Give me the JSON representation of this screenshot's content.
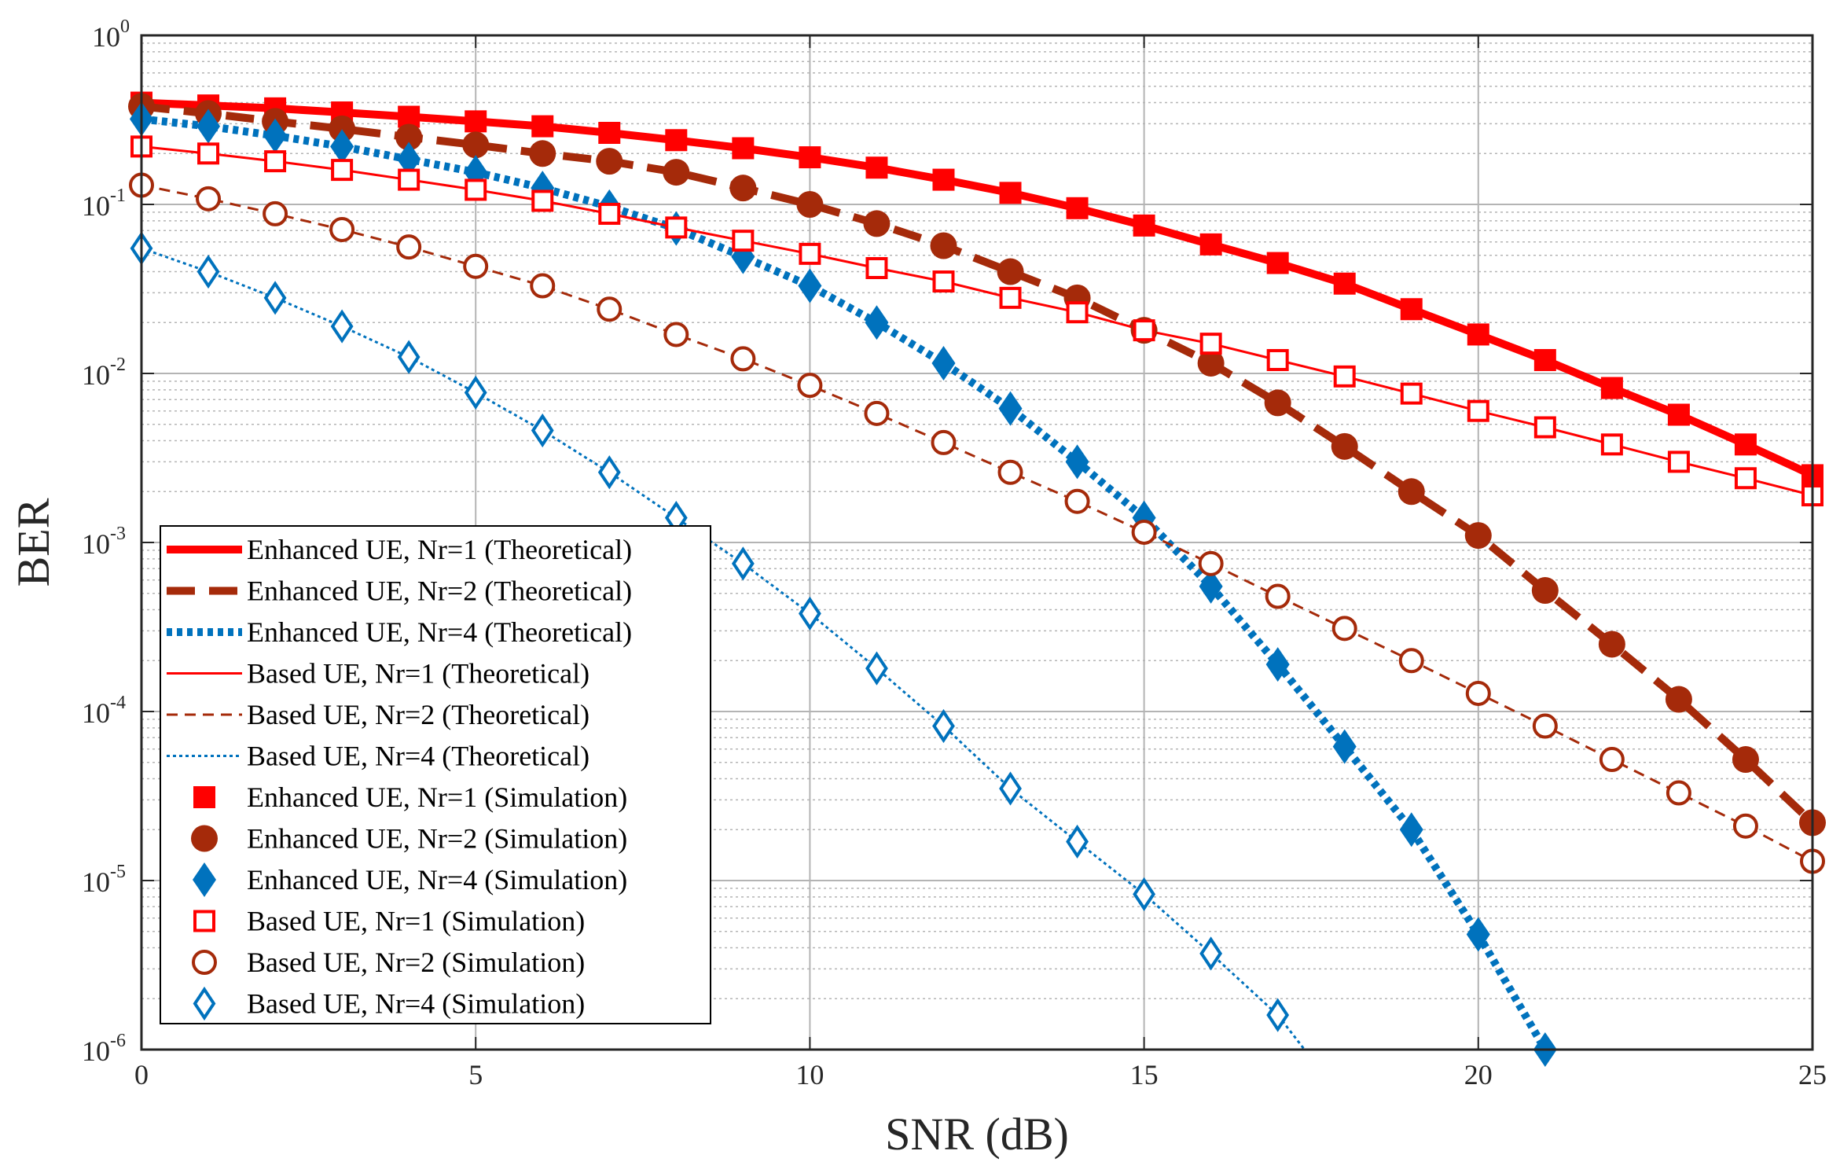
{
  "chart_data": {
    "type": "line",
    "title": "",
    "xlabel": "SNR (dB)",
    "ylabel": "BER",
    "yscale": "log",
    "xlim": [
      0,
      25
    ],
    "ylim": [
      1e-06,
      1
    ],
    "grid": true,
    "minor_grid": true,
    "legend_position": "lower-left",
    "x_ticks": [
      0,
      5,
      10,
      15,
      20,
      25
    ],
    "y_ticks": [
      {
        "base": "10",
        "exp": "0",
        "value": 1
      },
      {
        "base": "10",
        "exp": "-1",
        "value": 0.1
      },
      {
        "base": "10",
        "exp": "-2",
        "value": 0.01
      },
      {
        "base": "10",
        "exp": "-3",
        "value": 0.001
      },
      {
        "base": "10",
        "exp": "-4",
        "value": 0.0001
      },
      {
        "base": "10",
        "exp": "-5",
        "value": 1e-05
      },
      {
        "base": "10",
        "exp": "-6",
        "value": 1e-06
      }
    ],
    "colors": {
      "red": "#ff0000",
      "brown": "#a52a0a",
      "blue": "#0072bd",
      "grid": "#b4b4b4",
      "axis": "#262626"
    },
    "series": [
      {
        "name": "Enhanced UE, Nr=1 (Theoretical)",
        "kind": "line",
        "color": "red",
        "style": "solid",
        "width": "thick",
        "x": [
          0,
          1,
          2,
          3,
          4,
          5,
          6,
          7,
          8,
          9,
          10,
          11,
          12,
          13,
          14,
          15,
          16,
          17,
          18,
          19,
          20,
          21,
          22,
          23,
          24,
          25
        ],
        "y": [
          0.4,
          0.385,
          0.37,
          0.35,
          0.33,
          0.31,
          0.29,
          0.265,
          0.24,
          0.215,
          0.19,
          0.165,
          0.14,
          0.117,
          0.095,
          0.075,
          0.058,
          0.045,
          0.034,
          0.024,
          0.017,
          0.012,
          0.0082,
          0.0057,
          0.0038,
          0.0025
        ]
      },
      {
        "name": "Enhanced UE, Nr=2 (Theoretical)",
        "kind": "line",
        "color": "brown",
        "style": "dashed",
        "width": "thick",
        "x": [
          0,
          1,
          2,
          3,
          4,
          5,
          6,
          7,
          8,
          9,
          10,
          11,
          12,
          13,
          14,
          15,
          16,
          17,
          18,
          19,
          20,
          21,
          22,
          23,
          24,
          25
        ],
        "y": [
          0.38,
          0.345,
          0.31,
          0.28,
          0.25,
          0.225,
          0.2,
          0.18,
          0.155,
          0.125,
          0.1,
          0.077,
          0.057,
          0.04,
          0.028,
          0.018,
          0.0115,
          0.0067,
          0.0037,
          0.002,
          0.0011,
          0.00052,
          0.00025,
          0.000118,
          5.2e-05,
          2.2e-05
        ]
      },
      {
        "name": "Enhanced UE, Nr=4 (Theoretical)",
        "kind": "line",
        "color": "blue",
        "style": "dotted",
        "width": "thick",
        "x": [
          0,
          1,
          2,
          3,
          4,
          5,
          6,
          7,
          8,
          9,
          10,
          11,
          12,
          13,
          14,
          15,
          16,
          17,
          18,
          19,
          20,
          21
        ],
        "y": [
          0.32,
          0.29,
          0.255,
          0.22,
          0.185,
          0.155,
          0.125,
          0.097,
          0.072,
          0.049,
          0.033,
          0.02,
          0.0115,
          0.0062,
          0.003,
          0.0014,
          0.00055,
          0.00019,
          6.2e-05,
          2e-05,
          4.8e-06,
          1e-06
        ]
      },
      {
        "name": "Based UE, Nr=1 (Theoretical)",
        "kind": "line",
        "color": "red",
        "style": "solid",
        "width": "thin",
        "x": [
          0,
          1,
          2,
          3,
          4,
          5,
          6,
          7,
          8,
          9,
          10,
          11,
          12,
          13,
          14,
          15,
          16,
          17,
          18,
          19,
          20,
          21,
          22,
          23,
          24,
          25
        ],
        "y": [
          0.22,
          0.2,
          0.18,
          0.16,
          0.14,
          0.122,
          0.105,
          0.088,
          0.073,
          0.061,
          0.051,
          0.042,
          0.035,
          0.028,
          0.023,
          0.018,
          0.015,
          0.012,
          0.0096,
          0.0076,
          0.006,
          0.0048,
          0.0038,
          0.003,
          0.0024,
          0.0019
        ]
      },
      {
        "name": "Based UE, Nr=2 (Theoretical)",
        "kind": "line",
        "color": "brown",
        "style": "dashed",
        "width": "thin",
        "x": [
          0,
          1,
          2,
          3,
          4,
          5,
          6,
          7,
          8,
          9,
          10,
          11,
          12,
          13,
          14,
          15,
          16,
          17,
          18,
          19,
          20,
          21,
          22,
          23,
          24,
          25
        ],
        "y": [
          0.13,
          0.108,
          0.088,
          0.071,
          0.056,
          0.043,
          0.033,
          0.024,
          0.017,
          0.0122,
          0.0085,
          0.0058,
          0.0039,
          0.0026,
          0.00175,
          0.00115,
          0.00075,
          0.00048,
          0.00031,
          0.0002,
          0.000128,
          8.2e-05,
          5.2e-05,
          3.3e-05,
          2.1e-05,
          1.3e-05
        ]
      },
      {
        "name": "Based UE, Nr=4 (Theoretical)",
        "kind": "line",
        "color": "blue",
        "style": "dotted",
        "width": "thin",
        "x": [
          0,
          1,
          2,
          3,
          4,
          5,
          6,
          7,
          8,
          9,
          10,
          11,
          12,
          13,
          14,
          15,
          16,
          17,
          17.4
        ],
        "y": [
          0.055,
          0.04,
          0.028,
          0.019,
          0.0125,
          0.0077,
          0.0046,
          0.0026,
          0.0014,
          0.00075,
          0.00038,
          0.00018,
          8.2e-05,
          3.5e-05,
          1.7e-05,
          8.3e-06,
          3.7e-06,
          1.6e-06,
          1e-06
        ]
      },
      {
        "name": "Enhanced UE, Nr=1 (Simulation)",
        "kind": "marker",
        "color": "red",
        "marker": "square",
        "filled": true,
        "x": [
          0,
          1,
          2,
          3,
          4,
          5,
          6,
          7,
          8,
          9,
          10,
          11,
          12,
          13,
          14,
          15,
          16,
          17,
          18,
          19,
          20,
          21,
          22,
          23,
          24,
          25
        ],
        "y": [
          0.4,
          0.385,
          0.37,
          0.35,
          0.33,
          0.31,
          0.29,
          0.265,
          0.24,
          0.215,
          0.19,
          0.165,
          0.14,
          0.117,
          0.095,
          0.075,
          0.058,
          0.045,
          0.034,
          0.024,
          0.017,
          0.012,
          0.0082,
          0.0057,
          0.0038,
          0.0025
        ]
      },
      {
        "name": "Enhanced UE, Nr=2 (Simulation)",
        "kind": "marker",
        "color": "brown",
        "marker": "circle",
        "filled": true,
        "x": [
          0,
          1,
          2,
          3,
          4,
          5,
          6,
          7,
          8,
          9,
          10,
          11,
          12,
          13,
          14,
          15,
          16,
          17,
          18,
          19,
          20,
          21,
          22,
          23,
          24,
          25
        ],
        "y": [
          0.38,
          0.345,
          0.31,
          0.28,
          0.25,
          0.225,
          0.2,
          0.18,
          0.155,
          0.125,
          0.1,
          0.077,
          0.057,
          0.04,
          0.028,
          0.018,
          0.0115,
          0.0067,
          0.0037,
          0.002,
          0.0011,
          0.00052,
          0.00025,
          0.000118,
          5.2e-05,
          2.2e-05
        ]
      },
      {
        "name": "Enhanced UE, Nr=4 (Simulation)",
        "kind": "marker",
        "color": "blue",
        "marker": "diamond",
        "filled": true,
        "x": [
          0,
          1,
          2,
          3,
          4,
          5,
          6,
          7,
          8,
          9,
          10,
          11,
          12,
          13,
          14,
          15,
          16,
          17,
          18,
          19,
          20,
          21
        ],
        "y": [
          0.32,
          0.29,
          0.255,
          0.22,
          0.185,
          0.155,
          0.125,
          0.097,
          0.072,
          0.049,
          0.033,
          0.02,
          0.0115,
          0.0062,
          0.003,
          0.0014,
          0.00055,
          0.00019,
          6.2e-05,
          2e-05,
          4.8e-06,
          1e-06
        ]
      },
      {
        "name": "Based UE, Nr=1 (Simulation)",
        "kind": "marker",
        "color": "red",
        "marker": "square",
        "filled": false,
        "x": [
          0,
          1,
          2,
          3,
          4,
          5,
          6,
          7,
          8,
          9,
          10,
          11,
          12,
          13,
          14,
          15,
          16,
          17,
          18,
          19,
          20,
          21,
          22,
          23,
          24,
          25
        ],
        "y": [
          0.22,
          0.2,
          0.18,
          0.16,
          0.14,
          0.122,
          0.105,
          0.088,
          0.073,
          0.061,
          0.051,
          0.042,
          0.035,
          0.028,
          0.023,
          0.018,
          0.015,
          0.012,
          0.0096,
          0.0076,
          0.006,
          0.0048,
          0.0038,
          0.003,
          0.0024,
          0.0019
        ]
      },
      {
        "name": "Based UE, Nr=2 (Simulation)",
        "kind": "marker",
        "color": "brown",
        "marker": "circle",
        "filled": false,
        "x": [
          0,
          1,
          2,
          3,
          4,
          5,
          6,
          7,
          8,
          9,
          10,
          11,
          12,
          13,
          14,
          15,
          16,
          17,
          18,
          19,
          20,
          21,
          22,
          23,
          24,
          25
        ],
        "y": [
          0.13,
          0.108,
          0.088,
          0.071,
          0.056,
          0.043,
          0.033,
          0.024,
          0.017,
          0.0122,
          0.0085,
          0.0058,
          0.0039,
          0.0026,
          0.00175,
          0.00115,
          0.00075,
          0.00048,
          0.00031,
          0.0002,
          0.000128,
          8.2e-05,
          5.2e-05,
          3.3e-05,
          2.1e-05,
          1.3e-05
        ]
      },
      {
        "name": "Based UE, Nr=4 (Simulation)",
        "kind": "marker",
        "color": "blue",
        "marker": "diamond",
        "filled": false,
        "x": [
          0,
          1,
          2,
          3,
          4,
          5,
          6,
          7,
          8,
          9,
          10,
          11,
          12,
          13,
          14,
          15,
          16,
          17
        ],
        "y": [
          0.055,
          0.04,
          0.028,
          0.019,
          0.0125,
          0.0077,
          0.0046,
          0.0026,
          0.0014,
          0.00075,
          0.00038,
          0.00018,
          8.2e-05,
          3.5e-05,
          1.7e-05,
          8.3e-06,
          3.7e-06,
          1.6e-06
        ]
      }
    ]
  }
}
